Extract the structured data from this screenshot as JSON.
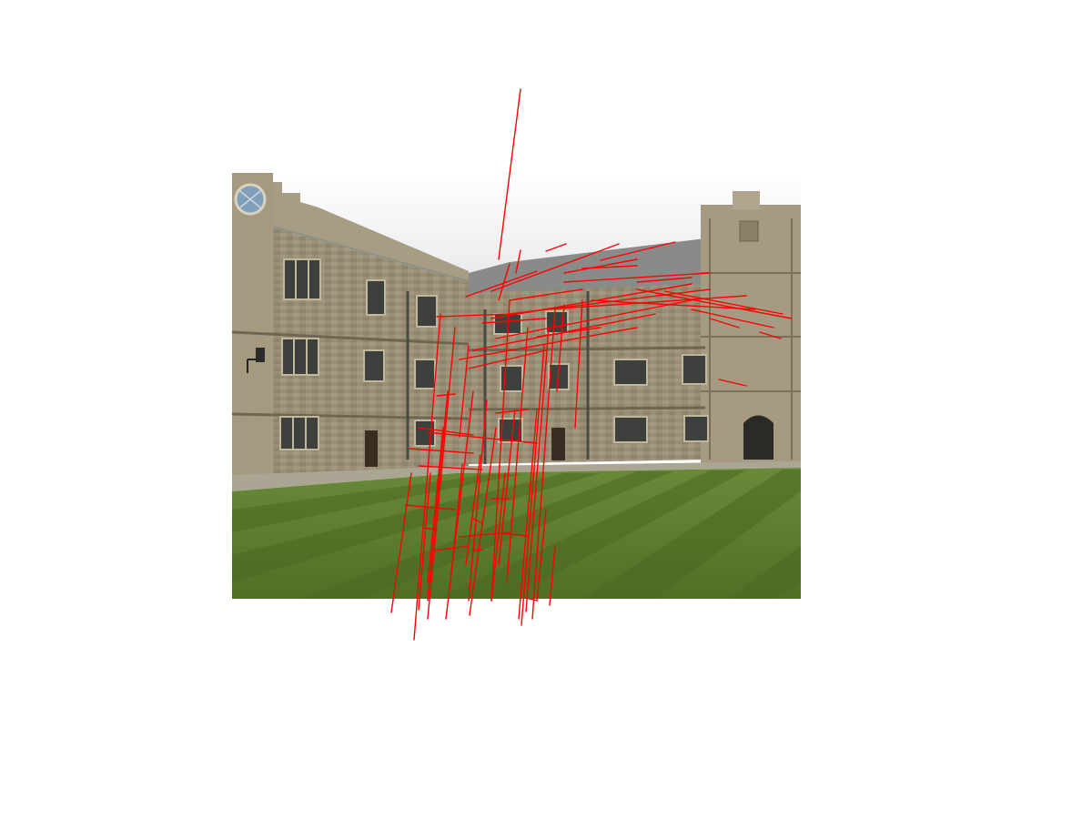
{
  "figure": {
    "background": "#ffffff",
    "overlay_color": "#ff0000",
    "palette": {
      "sky": "#e9ecee",
      "stone": "#9c9279",
      "stone_dark": "#6f6752",
      "roof": "#8f9190",
      "window": "#3d3f3c",
      "lawn_light": "#5c7d30",
      "lawn_dark": "#44631f",
      "path": "#a8a290"
    },
    "icons": [
      "clock-face-icon",
      "wall-lantern-icon",
      "coat-of-arms-icon"
    ]
  }
}
